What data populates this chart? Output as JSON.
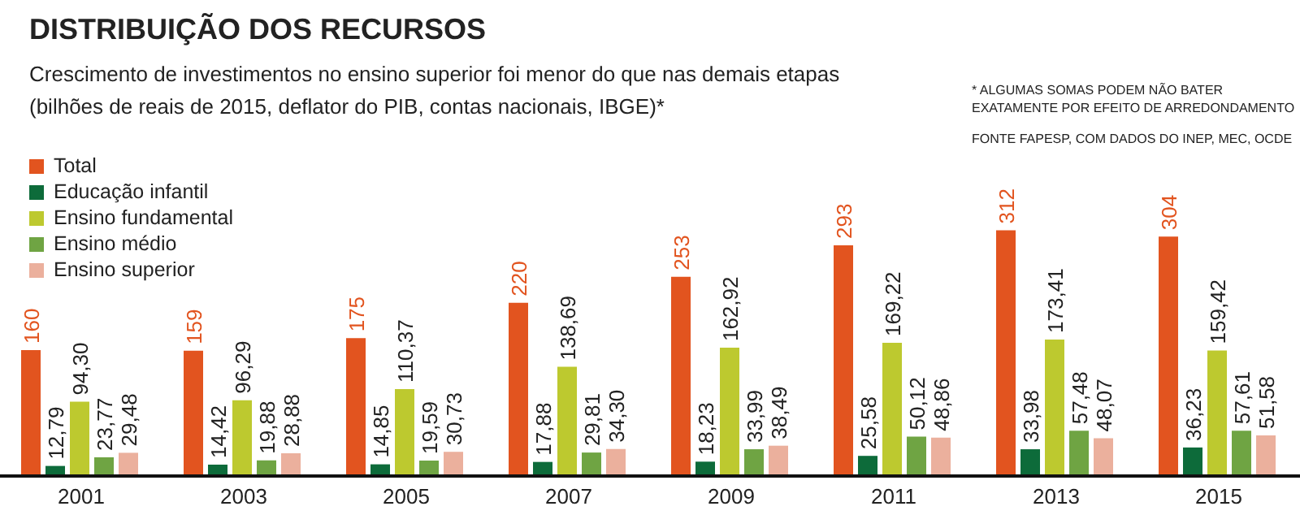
{
  "chart_data": {
    "type": "bar",
    "title": "DISTRIBUIÇÃO DOS RECURSOS",
    "subtitle": "Crescimento de investimentos no ensino superior foi menor do que nas demais etapas (bilhões de reais de 2015, deflator do PIB, contas nacionais, IBGE)*",
    "annotations": [
      "* ALGUMAS SOMAS PODEM NÃO BATER EXATAMENTE POR EFEITO DE ARREDONDAMENTO",
      "FONTE FAPESP, COM DADOS DO INEP, MEC, OCDE"
    ],
    "categories": [
      "2001",
      "2003",
      "2005",
      "2007",
      "2009",
      "2011",
      "2013",
      "2015"
    ],
    "series": [
      {
        "name": "Total",
        "color": "#e2541f",
        "values": [
          160,
          159,
          175,
          220,
          253,
          293,
          312,
          304
        ],
        "value_labels": [
          "160",
          "159",
          "175",
          "220",
          "253",
          "293",
          "312",
          "304"
        ]
      },
      {
        "name": "Educação infantil",
        "color": "#0d6b3a",
        "values": [
          12.79,
          14.42,
          14.85,
          17.88,
          18.23,
          25.58,
          33.98,
          36.23
        ],
        "value_labels": [
          "12,79",
          "14,42",
          "14,85",
          "17,88",
          "18,23",
          "25,58",
          "33,98",
          "36,23"
        ]
      },
      {
        "name": "Ensino fundamental",
        "color": "#bdc92f",
        "values": [
          94.3,
          96.29,
          110.37,
          138.69,
          162.92,
          169.22,
          173.41,
          159.42
        ],
        "value_labels": [
          "94,30",
          "96,29",
          "110,37",
          "138,69",
          "162,92",
          "169,22",
          "173,41",
          "159,42"
        ]
      },
      {
        "name": "Ensino médio",
        "color": "#6fa443",
        "values": [
          23.77,
          19.88,
          19.59,
          29.81,
          33.99,
          50.12,
          57.48,
          57.61
        ],
        "value_labels": [
          "23,77",
          "19,88",
          "19,59",
          "29,81",
          "33,99",
          "50,12",
          "57,48",
          "57,61"
        ]
      },
      {
        "name": "Ensino superior",
        "color": "#ebb09d",
        "values": [
          29.48,
          28.88,
          30.73,
          34.3,
          38.49,
          48.86,
          48.07,
          51.58
        ],
        "value_labels": [
          "29,48",
          "28,88",
          "30,73",
          "34,30",
          "38,49",
          "48,86",
          "48,07",
          "51,58"
        ]
      }
    ],
    "legend": "top left",
    "grid": false
  }
}
